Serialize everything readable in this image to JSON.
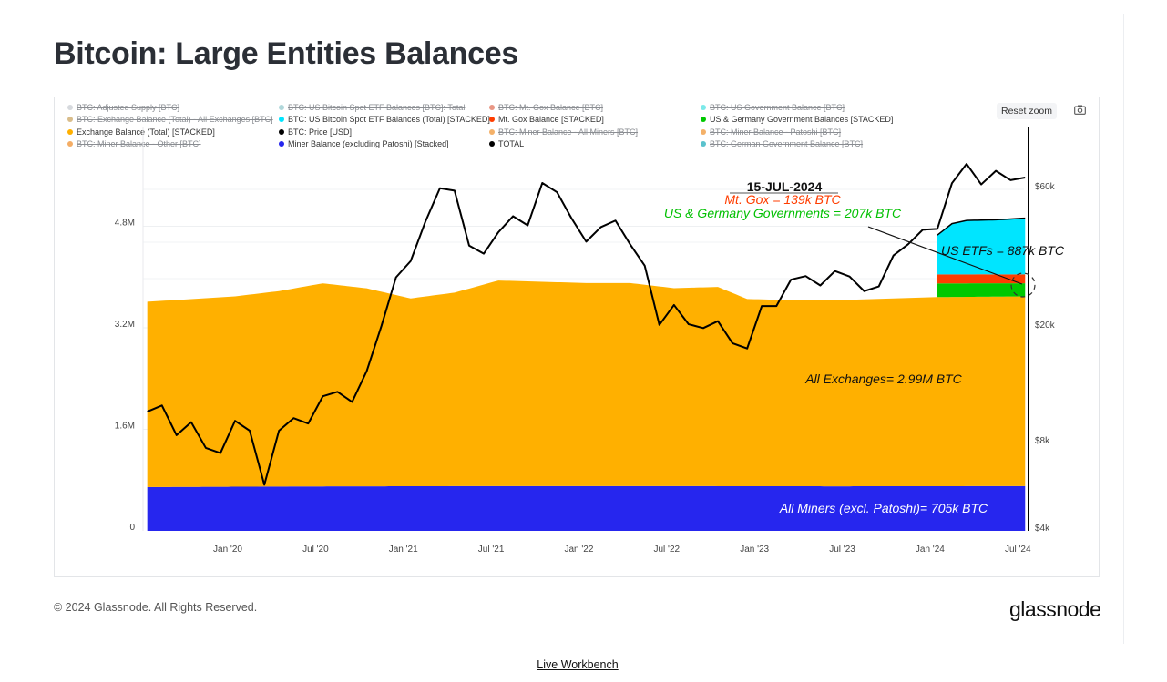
{
  "page": {
    "title": "Bitcoin: Large Entities Balances",
    "reset_zoom": "Reset zoom",
    "camera_icon": "camera-icon",
    "copyright": "© 2024 Glassnode. All Rights Reserved.",
    "logo": "glassnode",
    "link": "Live Workbench"
  },
  "legend": [
    {
      "label": "BTC: Adjusted Supply [BTC]",
      "color": "#c5c9ce",
      "hidden": true
    },
    {
      "label": "BTC: US Bitcoin Spot ETF Balances [BTC]: Total",
      "color": "#8fc6ca",
      "hidden": true
    },
    {
      "label": "BTC: Mt. Gox Balance [BTC]",
      "color": "#de6a50",
      "hidden": true
    },
    {
      "label": "BTC: US Government Balance [BTC]",
      "color": "#45e0e0",
      "hidden": true
    },
    {
      "label": "BTC: Exchange Balance (Total) - All Exchanges [BTC]",
      "color": "#c9a15a",
      "hidden": true
    },
    {
      "label": "BTC: US Bitcoin Spot ETF Balances (Total) [STACKED]",
      "color": "#00e5ff",
      "hidden": false
    },
    {
      "label": "Mt. Gox Balance [STACKED]",
      "color": "#ff3d00",
      "hidden": false
    },
    {
      "label": "US & Germany Government Balances [STACKED]",
      "color": "#00c800",
      "hidden": false
    },
    {
      "label": "Exchange Balance (Total) [STACKED]",
      "color": "#ffb000",
      "hidden": false
    },
    {
      "label": "BTC: Price [USD]",
      "color": "#000000",
      "hidden": false
    },
    {
      "label": "BTC: Miner Balance - All Miners [BTC]",
      "color": "#f0902a",
      "hidden": true
    },
    {
      "label": "BTC: Miner Balance - Patoshi [BTC]",
      "color": "#f0902a",
      "hidden": true
    },
    {
      "label": "BTC: Miner Balance - Other [BTC]",
      "color": "#f08a24",
      "hidden": true
    },
    {
      "label": "Miner Balance (excluding Patoshi) [Stacked]",
      "color": "#2626ee",
      "hidden": false
    },
    {
      "label": "TOTAL",
      "color": "#000000",
      "hidden": false
    },
    {
      "label": "BTC: German Government Balance [BTC]",
      "color": "#14a8b8",
      "hidden": true
    }
  ],
  "chart_data": {
    "type": "area",
    "stacked": true,
    "x_ticks": [
      "Jan '20",
      "Jul '20",
      "Jan '21",
      "Jul '21",
      "Jan '22",
      "Jul '22",
      "Jan '23",
      "Jul '23",
      "Jan '24",
      "Jul '24"
    ],
    "x_range": [
      "2019-07",
      "2024-07"
    ],
    "y_left": {
      "ticks": [
        "0",
        "1.6M",
        "3.2M",
        "4.8M"
      ],
      "tick_values": [
        0,
        1600000,
        3200000,
        4800000
      ],
      "range": [
        0,
        6000000
      ]
    },
    "y_right": {
      "scale": "log",
      "ticks": [
        "$4k",
        "$8k",
        "$20k",
        "$60k"
      ],
      "tick_values": [
        4000,
        8000,
        20000,
        60000
      ]
    },
    "grid": true,
    "legend_position": "top",
    "series": [
      {
        "name": "Miner Balance (excluding Patoshi) [Stacked]",
        "color": "#2626ee",
        "points": [
          [
            "2019-07",
            690000
          ],
          [
            "2020-06",
            700000
          ],
          [
            "2021-06",
            705000
          ],
          [
            "2022-06",
            705000
          ],
          [
            "2023-06",
            702000
          ],
          [
            "2024-07",
            705000
          ]
        ]
      },
      {
        "name": "Exchange Balance (Total) [STACKED]",
        "color": "#ffb000",
        "points": [
          [
            "2019-07",
            2920000
          ],
          [
            "2020-01",
            3000000
          ],
          [
            "2020-04",
            3080000
          ],
          [
            "2020-07",
            3200000
          ],
          [
            "2020-10",
            3120000
          ],
          [
            "2021-01",
            2960000
          ],
          [
            "2021-04",
            3050000
          ],
          [
            "2021-07",
            3240000
          ],
          [
            "2021-10",
            3220000
          ],
          [
            "2022-01",
            3200000
          ],
          [
            "2022-04",
            3200000
          ],
          [
            "2022-07",
            3120000
          ],
          [
            "2022-10",
            3140000
          ],
          [
            "2022-12",
            2950000
          ],
          [
            "2023-04",
            2930000
          ],
          [
            "2023-07",
            2940000
          ],
          [
            "2023-10",
            2960000
          ],
          [
            "2024-01",
            2980000
          ],
          [
            "2024-07",
            2990000
          ]
        ]
      },
      {
        "name": "US & Germany Government Balances [STACKED]",
        "color": "#00c800",
        "points": [
          [
            "2024-01",
            215000
          ],
          [
            "2024-04",
            212000
          ],
          [
            "2024-07",
            207000
          ]
        ]
      },
      {
        "name": "Mt. Gox Balance [STACKED]",
        "color": "#ff3d00",
        "points": [
          [
            "2024-01",
            142000
          ],
          [
            "2024-04",
            141000
          ],
          [
            "2024-07",
            139000
          ]
        ]
      },
      {
        "name": "BTC: US Bitcoin Spot ETF Balances (Total) [STACKED]",
        "color": "#00e5ff",
        "points": [
          [
            "2024-01",
            620000
          ],
          [
            "2024-02",
            800000
          ],
          [
            "2024-03",
            850000
          ],
          [
            "2024-05",
            860000
          ],
          [
            "2024-07",
            887000
          ]
        ]
      }
    ],
    "price": {
      "name": "BTC: Price [USD]",
      "color": "#000000",
      "axis": "right",
      "points": [
        [
          "2019-07",
          10000
        ],
        [
          "2019-08",
          10500
        ],
        [
          "2019-09",
          8300
        ],
        [
          "2019-10",
          9200
        ],
        [
          "2019-11",
          7500
        ],
        [
          "2019-12",
          7200
        ],
        [
          "2020-01",
          9300
        ],
        [
          "2020-02",
          8600
        ],
        [
          "2020-03",
          5600
        ],
        [
          "2020-04",
          8600
        ],
        [
          "2020-05",
          9500
        ],
        [
          "2020-06",
          9100
        ],
        [
          "2020-07",
          11300
        ],
        [
          "2020-08",
          11700
        ],
        [
          "2020-09",
          10800
        ],
        [
          "2020-10",
          13800
        ],
        [
          "2020-11",
          19700
        ],
        [
          "2020-12",
          29000
        ],
        [
          "2021-01",
          33000
        ],
        [
          "2021-02",
          45000
        ],
        [
          "2021-03",
          58800
        ],
        [
          "2021-04",
          57700
        ],
        [
          "2021-05",
          37300
        ],
        [
          "2021-06",
          35000
        ],
        [
          "2021-07",
          41500
        ],
        [
          "2021-08",
          47100
        ],
        [
          "2021-09",
          43800
        ],
        [
          "2021-10",
          61300
        ],
        [
          "2021-11",
          57000
        ],
        [
          "2021-12",
          46300
        ],
        [
          "2022-01",
          38500
        ],
        [
          "2022-02",
          43200
        ],
        [
          "2022-03",
          45500
        ],
        [
          "2022-04",
          37700
        ],
        [
          "2022-05",
          31800
        ],
        [
          "2022-06",
          19900
        ],
        [
          "2022-07",
          23300
        ],
        [
          "2022-08",
          20000
        ],
        [
          "2022-09",
          19400
        ],
        [
          "2022-10",
          20500
        ],
        [
          "2022-11",
          17200
        ],
        [
          "2022-12",
          16500
        ],
        [
          "2023-01",
          23100
        ],
        [
          "2023-02",
          23100
        ],
        [
          "2023-03",
          28500
        ],
        [
          "2023-04",
          29300
        ],
        [
          "2023-05",
          27200
        ],
        [
          "2023-06",
          30500
        ],
        [
          "2023-07",
          29200
        ],
        [
          "2023-08",
          26000
        ],
        [
          "2023-09",
          27000
        ],
        [
          "2023-10",
          34500
        ],
        [
          "2023-11",
          37700
        ],
        [
          "2023-12",
          42300
        ],
        [
          "2024-01",
          42600
        ],
        [
          "2024-02",
          61200
        ],
        [
          "2024-03",
          71300
        ],
        [
          "2024-04",
          60600
        ],
        [
          "2024-05",
          67500
        ],
        [
          "2024-06",
          62700
        ],
        [
          "2024-07",
          64000
        ]
      ]
    },
    "annotations": {
      "date": "15-JUL-2024",
      "mtgox": "Mt. Gox = 139k BTC",
      "gov": "US & Germany Governments = 207k BTC",
      "etf": "US ETFs = 887k BTC",
      "exchanges": "All Exchanges= 2.99M BTC",
      "miners": "All Miners (excl. Patoshi)= 705k BTC",
      "mtgox_color": "#ff3d00",
      "gov_color": "#00c000"
    }
  }
}
